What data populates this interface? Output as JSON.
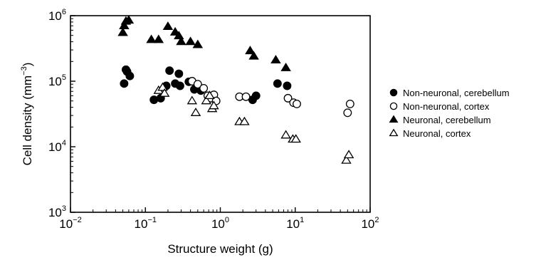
{
  "chart_data": {
    "type": "scatter",
    "xlabel": "Structure weight (g)",
    "ylabel_main": "Cell density (mm",
    "ylabel_sup": "−3",
    "ylabel_close": ")",
    "x_scale": "log",
    "y_scale": "log",
    "xlim": [
      0.01,
      100
    ],
    "ylim": [
      1000,
      1000000
    ],
    "grid": false,
    "legend_position": "right",
    "x_ticks": [
      {
        "base": "10",
        "exp": "−2",
        "value": 0.01
      },
      {
        "base": "10",
        "exp": "−1",
        "value": 0.1
      },
      {
        "base": "10",
        "exp": "0",
        "value": 1
      },
      {
        "base": "10",
        "exp": "1",
        "value": 10
      },
      {
        "base": "10",
        "exp": "2",
        "value": 100
      }
    ],
    "y_ticks": [
      {
        "base": "10",
        "exp": "3",
        "value": 1000
      },
      {
        "base": "10",
        "exp": "4",
        "value": 10000
      },
      {
        "base": "10",
        "exp": "5",
        "value": 100000
      },
      {
        "base": "10",
        "exp": "6",
        "value": 1000000
      }
    ],
    "series": [
      {
        "name": "Non-neuronal, cerebellum",
        "marker": "circle",
        "filled": true,
        "points": [
          [
            0.052,
            92000
          ],
          [
            0.055,
            150000
          ],
          [
            0.057,
            140000
          ],
          [
            0.062,
            120000
          ],
          [
            0.13,
            52000
          ],
          [
            0.16,
            55000
          ],
          [
            0.19,
            85000
          ],
          [
            0.21,
            145000
          ],
          [
            0.25,
            92000
          ],
          [
            0.28,
            130000
          ],
          [
            0.29,
            85000
          ],
          [
            0.38,
            98000
          ],
          [
            0.45,
            75000
          ],
          [
            0.55,
            72000
          ],
          [
            2.7,
            52000
          ],
          [
            3.0,
            60000
          ],
          [
            5.8,
            92000
          ],
          [
            7.8,
            85000
          ]
        ]
      },
      {
        "name": "Non-neuronal, cortex",
        "marker": "circle",
        "filled": false,
        "points": [
          [
            0.42,
            100000
          ],
          [
            0.5,
            90000
          ],
          [
            0.6,
            78000
          ],
          [
            0.68,
            60000
          ],
          [
            0.75,
            55000
          ],
          [
            0.82,
            62000
          ],
          [
            0.88,
            50000
          ],
          [
            1.8,
            58000
          ],
          [
            2.2,
            58000
          ],
          [
            8.0,
            55000
          ],
          [
            9.5,
            47000
          ],
          [
            10.5,
            45000
          ],
          [
            50,
            33000
          ],
          [
            54,
            45000
          ]
        ]
      },
      {
        "name": "Neuronal, cerebellum",
        "marker": "triangle",
        "filled": true,
        "points": [
          [
            0.05,
            550000
          ],
          [
            0.052,
            700000
          ],
          [
            0.055,
            820000
          ],
          [
            0.06,
            850000
          ],
          [
            0.12,
            430000
          ],
          [
            0.15,
            430000
          ],
          [
            0.2,
            680000
          ],
          [
            0.25,
            560000
          ],
          [
            0.28,
            490000
          ],
          [
            0.3,
            400000
          ],
          [
            0.4,
            400000
          ],
          [
            0.5,
            360000
          ],
          [
            2.5,
            290000
          ],
          [
            2.8,
            240000
          ],
          [
            5.5,
            210000
          ],
          [
            7.5,
            160000
          ]
        ]
      },
      {
        "name": "Neuronal, cortex",
        "marker": "triangle",
        "filled": false,
        "points": [
          [
            0.15,
            72000
          ],
          [
            0.17,
            80000
          ],
          [
            0.18,
            65000
          ],
          [
            0.42,
            50000
          ],
          [
            0.47,
            33000
          ],
          [
            0.65,
            50000
          ],
          [
            0.72,
            60000
          ],
          [
            0.78,
            38000
          ],
          [
            0.82,
            42000
          ],
          [
            1.8,
            24000
          ],
          [
            2.1,
            24000
          ],
          [
            7.5,
            15000
          ],
          [
            9.3,
            13000
          ],
          [
            10.2,
            13000
          ],
          [
            48,
            6200
          ],
          [
            52,
            7500
          ]
        ]
      }
    ]
  }
}
